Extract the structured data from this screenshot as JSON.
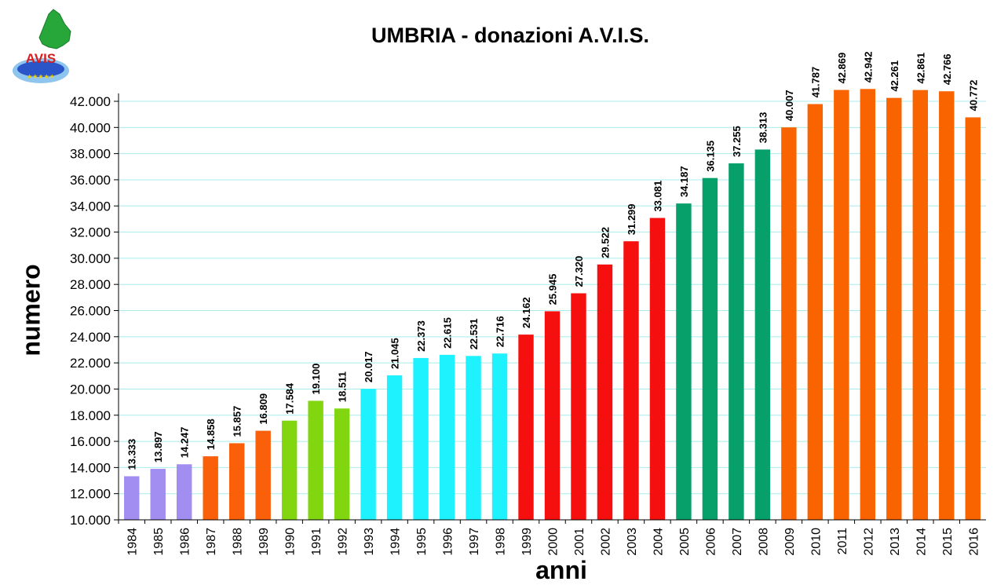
{
  "chart_data": {
    "type": "bar",
    "title": "UMBRIA - donazioni A.V.I.S.",
    "xlabel": "anni",
    "ylabel": "numero",
    "ylim": [
      10000,
      42000
    ],
    "ytick_step": 2000,
    "yticks": [
      "10.000",
      "12.000",
      "14.000",
      "16.000",
      "18.000",
      "20.000",
      "22.000",
      "24.000",
      "26.000",
      "28.000",
      "30.000",
      "32.000",
      "34.000",
      "36.000",
      "38.000",
      "40.000",
      "42.000"
    ],
    "grid": true,
    "categories": [
      "1984",
      "1985",
      "1986",
      "1987",
      "1988",
      "1989",
      "1990",
      "1991",
      "1992",
      "1993",
      "1994",
      "1995",
      "1996",
      "1997",
      "1998",
      "1999",
      "2000",
      "2001",
      "2002",
      "2003",
      "2004",
      "2005",
      "2006",
      "2007",
      "2008",
      "2009",
      "2010",
      "2011",
      "2012",
      "2013",
      "2014",
      "2015",
      "2016"
    ],
    "values": [
      13333,
      13897,
      14247,
      14858,
      15857,
      16809,
      17584,
      19100,
      18511,
      20017,
      21045,
      22373,
      22615,
      22531,
      22716,
      24162,
      25945,
      27320,
      29522,
      31299,
      33081,
      34187,
      36135,
      37255,
      38313,
      40007,
      41787,
      42869,
      42942,
      42261,
      42861,
      42766,
      40772
    ],
    "value_labels": [
      "13.333",
      "13.897",
      "14.247",
      "14.858",
      "15.857",
      "16.809",
      "17.584",
      "19.100",
      "18.511",
      "20.017",
      "21.045",
      "22.373",
      "22.615",
      "22.531",
      "22.716",
      "24.162",
      "25.945",
      "27.320",
      "29.522",
      "31.299",
      "33.081",
      "34.187",
      "36.135",
      "37.255",
      "38.313",
      "40.007",
      "41.787",
      "42.869",
      "42.942",
      "42.261",
      "42.861",
      "42.766",
      "40.772"
    ],
    "bar_colors": [
      "#a18ef0",
      "#a18ef0",
      "#a18ef0",
      "#fa5f0a",
      "#fa5f0a",
      "#fa5f0a",
      "#82d60f",
      "#82d60f",
      "#82d60f",
      "#1ff2ff",
      "#1ff2ff",
      "#1ff2ff",
      "#1ff2ff",
      "#1ff2ff",
      "#1ff2ff",
      "#f50f0f",
      "#f50f0f",
      "#f50f0f",
      "#f50f0f",
      "#f50f0f",
      "#f50f0f",
      "#07a06a",
      "#07a06a",
      "#07a06a",
      "#07a06a",
      "#fa6400",
      "#fa6400",
      "#fa6400",
      "#fa6400",
      "#fa6400",
      "#fa6400",
      "#fa6400",
      "#fa6400"
    ],
    "grid_color": "#a8ecec"
  },
  "logo": {
    "text": "AVIS",
    "colors": {
      "region": "#27a73a",
      "brand": "#2a55c8",
      "star": "#f5d000"
    }
  }
}
